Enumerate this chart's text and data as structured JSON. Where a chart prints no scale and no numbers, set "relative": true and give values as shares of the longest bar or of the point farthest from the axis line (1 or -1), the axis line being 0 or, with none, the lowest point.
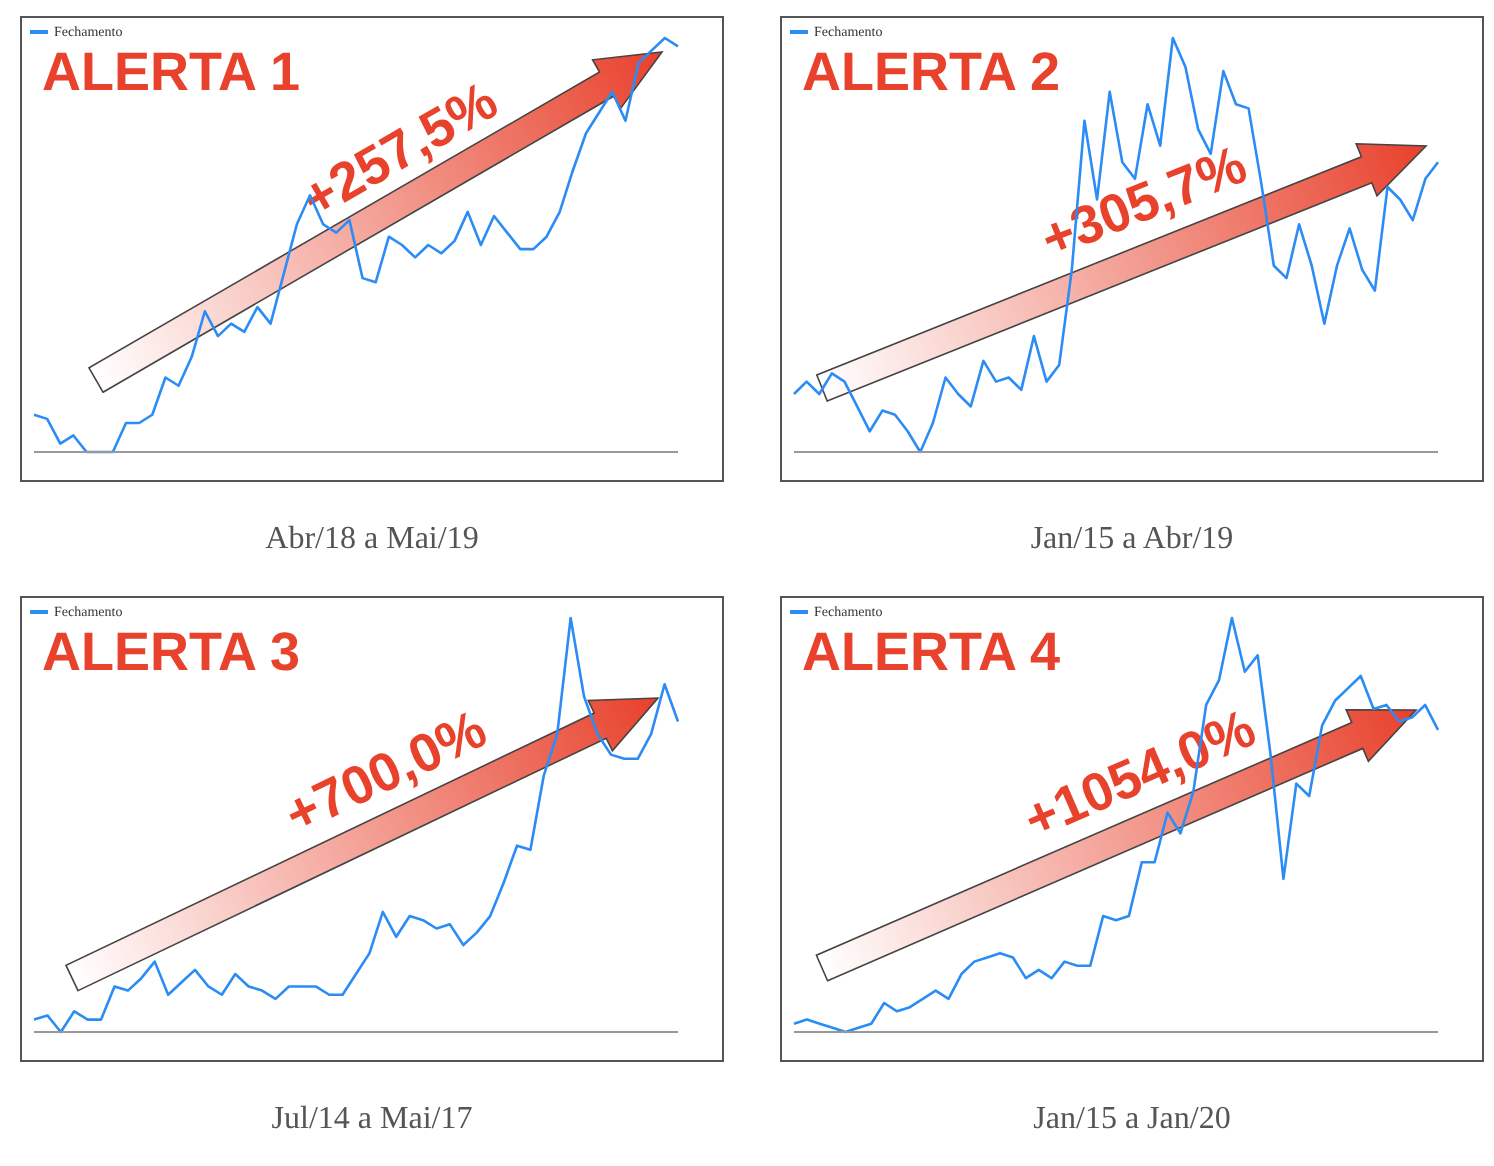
{
  "chart_data": [
    {
      "type": "line",
      "title": "ALERTA 1",
      "xlabel": "Abr/18 a Mai/19",
      "annotations": [
        "+257,5%"
      ],
      "relative": true,
      "tick_labels": false,
      "legend": "top left",
      "categories": [
        null,
        null,
        null,
        null,
        null,
        null,
        null,
        null,
        null,
        null,
        null,
        null,
        null,
        null,
        null,
        null,
        null,
        null,
        null,
        null,
        null,
        null,
        null,
        null,
        null,
        null,
        null,
        null,
        null,
        null,
        null,
        null,
        null,
        null,
        null,
        null,
        null,
        null,
        null,
        null,
        null,
        null,
        null,
        null,
        null,
        null,
        null,
        null,
        null,
        null
      ],
      "series": [
        {
          "name": "Fechamento",
          "color": "#2b8cf5",
          "values": [
            0.09,
            0.08,
            0.02,
            0.04,
            0,
            0,
            0,
            0.07,
            0.07,
            0.09,
            0.18,
            0.16,
            0.23,
            0.34,
            0.28,
            0.31,
            0.29,
            0.35,
            0.31,
            0.43,
            0.55,
            0.62,
            0.55,
            0.53,
            0.56,
            0.42,
            0.41,
            0.52,
            0.5,
            0.47,
            0.5,
            0.48,
            0.51,
            0.58,
            0.5,
            0.57,
            0.53,
            0.49,
            0.49,
            0.52,
            0.58,
            0.68,
            0.77,
            0.82,
            0.87,
            0.8,
            0.94,
            0.97,
            1,
            0.98
          ]
        }
      ]
    },
    {
      "type": "line",
      "title": "ALERTA 2",
      "xlabel": "Jan/15 a Abr/19",
      "annotations": [
        "+305,7%"
      ],
      "relative": true,
      "tick_labels": false,
      "legend": "top left",
      "categories": [
        null,
        null,
        null,
        null,
        null,
        null,
        null,
        null,
        null,
        null,
        null,
        null,
        null,
        null,
        null,
        null,
        null,
        null,
        null,
        null,
        null,
        null,
        null,
        null,
        null,
        null,
        null,
        null,
        null,
        null,
        null,
        null,
        null,
        null,
        null,
        null,
        null,
        null,
        null,
        null,
        null,
        null,
        null,
        null,
        null,
        null,
        null,
        null,
        null,
        null,
        null,
        null
      ],
      "series": [
        {
          "name": "Fechamento",
          "color": "#2b8cf5",
          "values": [
            0.14,
            0.17,
            0.14,
            0.19,
            0.17,
            0.11,
            0.05,
            0.1,
            0.09,
            0.05,
            0,
            0.07,
            0.18,
            0.14,
            0.11,
            0.22,
            0.17,
            0.18,
            0.15,
            0.28,
            0.17,
            0.21,
            0.44,
            0.8,
            0.61,
            0.87,
            0.7,
            0.66,
            0.84,
            0.74,
            1,
            0.93,
            0.78,
            0.72,
            0.92,
            0.84,
            0.83,
            0.65,
            0.45,
            0.42,
            0.55,
            0.45,
            0.31,
            0.45,
            0.54,
            0.44,
            0.39,
            0.64,
            0.61,
            0.56,
            0.66,
            0.7
          ]
        }
      ]
    },
    {
      "type": "line",
      "title": "ALERTA 3",
      "xlabel": "Jul/14 a Mai/17",
      "annotations": [
        "+700,0%"
      ],
      "relative": true,
      "tick_labels": false,
      "legend": "top left",
      "categories": [
        null,
        null,
        null,
        null,
        null,
        null,
        null,
        null,
        null,
        null,
        null,
        null,
        null,
        null,
        null,
        null,
        null,
        null,
        null,
        null,
        null,
        null,
        null,
        null,
        null,
        null,
        null,
        null,
        null,
        null,
        null,
        null,
        null,
        null,
        null,
        null,
        null,
        null,
        null,
        null,
        null,
        null,
        null,
        null,
        null,
        null,
        null,
        null,
        null
      ],
      "series": [
        {
          "name": "Fechamento",
          "color": "#2b8cf5",
          "values": [
            0.03,
            0.04,
            0,
            0.05,
            0.03,
            0.03,
            0.11,
            0.1,
            0.13,
            0.17,
            0.09,
            0.12,
            0.15,
            0.11,
            0.09,
            0.14,
            0.11,
            0.1,
            0.08,
            0.11,
            0.11,
            0.11,
            0.09,
            0.09,
            0.14,
            0.19,
            0.29,
            0.23,
            0.28,
            0.27,
            0.25,
            0.26,
            0.21,
            0.24,
            0.28,
            0.36,
            0.45,
            0.44,
            0.62,
            0.72,
            1,
            0.81,
            0.72,
            0.67,
            0.66,
            0.66,
            0.72,
            0.84,
            0.75
          ]
        }
      ]
    },
    {
      "type": "line",
      "title": "ALERTA 4",
      "xlabel": "Jan/15 a Jan/20",
      "annotations": [
        "+1054,0%"
      ],
      "relative": true,
      "tick_labels": false,
      "legend": "top left",
      "categories": [
        null,
        null,
        null,
        null,
        null,
        null,
        null,
        null,
        null,
        null,
        null,
        null,
        null,
        null,
        null,
        null,
        null,
        null,
        null,
        null,
        null,
        null,
        null,
        null,
        null,
        null,
        null,
        null,
        null,
        null,
        null,
        null,
        null,
        null,
        null,
        null,
        null,
        null,
        null,
        null,
        null,
        null,
        null,
        null,
        null,
        null,
        null,
        null,
        null,
        null,
        null
      ],
      "series": [
        {
          "name": "Fechamento",
          "color": "#2b8cf5",
          "values": [
            0.02,
            0.03,
            0.02,
            0.01,
            0,
            0.01,
            0.02,
            0.07,
            0.05,
            0.06,
            0.08,
            0.1,
            0.08,
            0.14,
            0.17,
            0.18,
            0.19,
            0.18,
            0.13,
            0.15,
            0.13,
            0.17,
            0.16,
            0.16,
            0.28,
            0.27,
            0.28,
            0.41,
            0.41,
            0.53,
            0.48,
            0.58,
            0.79,
            0.85,
            1,
            0.87,
            0.91,
            0.67,
            0.37,
            0.6,
            0.57,
            0.74,
            0.8,
            0.83,
            0.86,
            0.78,
            0.79,
            0.75,
            0.76,
            0.79,
            0.73
          ]
        }
      ]
    }
  ]
}
